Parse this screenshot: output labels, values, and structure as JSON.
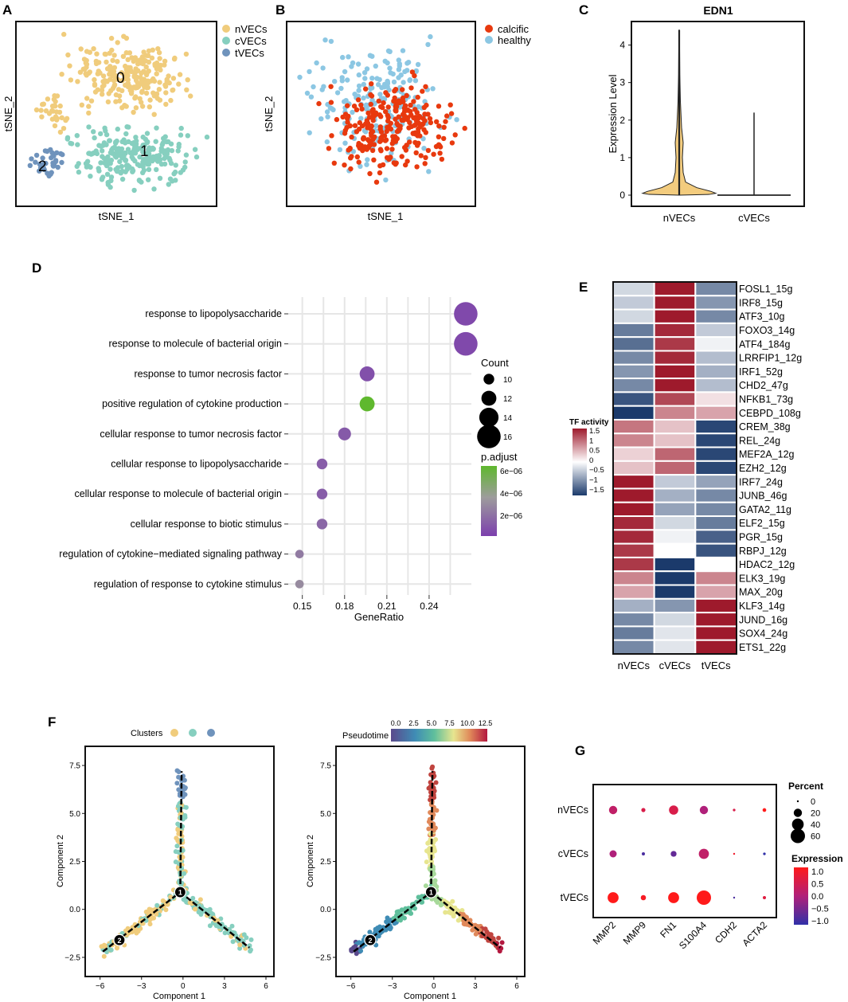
{
  "colors": {
    "nVECs": "#f0cc7c",
    "cVECs": "#86cfbf",
    "tVECs": "#6f93bc",
    "calcific": "#e8390e",
    "healthy": "#8cc7e3",
    "violin": "#f3cc7e",
    "frame": "#111111",
    "grid": "#e6e6e6"
  },
  "chart_data": [
    {
      "panel": "A",
      "type": "scatter",
      "xlabel": "tSNE_1",
      "ylabel": "tSNE_2",
      "legend": [
        "nVECs",
        "cVECs",
        "tVECs"
      ],
      "cluster_labels": [
        "0",
        "1",
        "2"
      ]
    },
    {
      "panel": "B",
      "type": "scatter",
      "xlabel": "tSNE_1",
      "ylabel": "tSNE_2",
      "legend": [
        "calcific",
        "healthy"
      ]
    },
    {
      "panel": "C",
      "type": "violin",
      "title": "EDN1",
      "ylabel": "Expression Level",
      "categories": [
        "nVECs",
        "cVECs"
      ],
      "ylim": [
        0,
        4.5
      ],
      "yticks": [
        "0",
        "1",
        "2",
        "3",
        "4"
      ],
      "max_values": [
        4.4,
        2.2
      ]
    },
    {
      "panel": "D",
      "type": "scatter",
      "xlabel": "GeneRatio",
      "xticks": [
        "0.15",
        "0.18",
        "0.21",
        "0.24"
      ],
      "xlim": [
        0.14,
        0.27
      ],
      "terms": [
        {
          "term": "response to lipopolysaccharide",
          "ratio": 0.266,
          "count": 16,
          "padj": 1.5e-06
        },
        {
          "term": "response to molecule of bacterial origin",
          "ratio": 0.266,
          "count": 16,
          "padj": 1.5e-06
        },
        {
          "term": "response to tumor necrosis factor",
          "ratio": 0.196,
          "count": 12,
          "padj": 1.7e-06
        },
        {
          "term": "positive regulation of cytokine production",
          "ratio": 0.196,
          "count": 12,
          "padj": 6.3e-06
        },
        {
          "term": "cellular response to tumor necrosis factor",
          "ratio": 0.18,
          "count": 11,
          "padj": 2e-06
        },
        {
          "term": "cellular response to lipopolysaccharide",
          "ratio": 0.164,
          "count": 10,
          "padj": 2.1e-06
        },
        {
          "term": "cellular response to molecule of bacterial origin",
          "ratio": 0.164,
          "count": 10,
          "padj": 2.1e-06
        },
        {
          "term": "cellular response to biotic stimulus",
          "ratio": 0.164,
          "count": 10,
          "padj": 2.4e-06
        },
        {
          "term": "regulation of cytokine−mediated signaling pathway",
          "ratio": 0.148,
          "count": 9,
          "padj": 3e-06
        },
        {
          "term": "regulation of response to cytokine stimulus",
          "ratio": 0.148,
          "count": 9,
          "padj": 3.5e-06
        }
      ],
      "size_legend_title": "Count",
      "size_legend": [
        "10",
        "12",
        "14",
        "16"
      ],
      "color_legend_title": "p.adjust",
      "color_legend": [
        "6e−06",
        "4e−06",
        "2e−06"
      ]
    },
    {
      "panel": "E",
      "type": "heatmap",
      "legend_title": "TF activity",
      "legend_ticks": [
        "1.5",
        "1",
        "0.5",
        "0",
        "−0.5",
        "−1",
        "−1.5"
      ],
      "columns": [
        "nVECs",
        "cVECs",
        "tVECs"
      ],
      "rows": [
        {
          "tf": "FOSL1_15g",
          "values": [
            -0.3,
            1.5,
            -0.9
          ]
        },
        {
          "tf": "IRF8_15g",
          "values": [
            -0.4,
            1.5,
            -0.8
          ]
        },
        {
          "tf": "ATF3_10g",
          "values": [
            -0.3,
            1.5,
            -0.9
          ]
        },
        {
          "tf": "FOXO3_14g",
          "values": [
            -1.0,
            1.4,
            -0.4
          ]
        },
        {
          "tf": "ATF4_184g",
          "values": [
            -1.1,
            1.3,
            -0.1
          ]
        },
        {
          "tf": "LRRFIP1_12g",
          "values": [
            -0.9,
            1.4,
            -0.5
          ]
        },
        {
          "tf": "IRF1_52g",
          "values": [
            -0.8,
            1.5,
            -0.6
          ]
        },
        {
          "tf": "CHD2_47g",
          "values": [
            -0.9,
            1.5,
            -0.5
          ]
        },
        {
          "tf": "NFKB1_73g",
          "values": [
            -1.3,
            1.2,
            0.2
          ]
        },
        {
          "tf": "CEBPD_108g",
          "values": [
            -1.5,
            0.8,
            0.6
          ]
        },
        {
          "tf": "CREM_38g",
          "values": [
            0.9,
            0.4,
            -1.4
          ]
        },
        {
          "tf": "REL_24g",
          "values": [
            0.8,
            0.4,
            -1.4
          ]
        },
        {
          "tf": "MEF2A_12g",
          "values": [
            0.3,
            1.0,
            -1.4
          ]
        },
        {
          "tf": "EZH2_12g",
          "values": [
            0.4,
            1.0,
            -1.4
          ]
        },
        {
          "tf": "IRF7_24g",
          "values": [
            1.5,
            -0.4,
            -0.7
          ]
        },
        {
          "tf": "JUNB_46g",
          "values": [
            1.5,
            -0.6,
            -0.9
          ]
        },
        {
          "tf": "GATA2_11g",
          "values": [
            1.5,
            -0.7,
            -0.9
          ]
        },
        {
          "tf": "ELF2_15g",
          "values": [
            1.4,
            -0.3,
            -1.0
          ]
        },
        {
          "tf": "PGR_15g",
          "values": [
            1.4,
            -0.1,
            -1.2
          ]
        },
        {
          "tf": "RBPJ_12g",
          "values": [
            1.3,
            0.0,
            -1.3
          ]
        },
        {
          "tf": "HDAC2_12g",
          "values": [
            1.3,
            -1.5,
            0.0
          ]
        },
        {
          "tf": "ELK3_19g",
          "values": [
            0.8,
            -1.6,
            0.8
          ]
        },
        {
          "tf": "MAX_20g",
          "values": [
            0.6,
            -1.6,
            0.6
          ]
        },
        {
          "tf": "KLF3_14g",
          "values": [
            -0.6,
            -0.8,
            1.5
          ]
        },
        {
          "tf": "JUND_16g",
          "values": [
            -0.9,
            -0.3,
            1.5
          ]
        },
        {
          "tf": "SOX4_24g",
          "values": [
            -1.0,
            -0.2,
            1.5
          ]
        },
        {
          "tf": "ETS1_22g",
          "values": [
            -0.9,
            -0.2,
            1.5
          ]
        }
      ]
    },
    {
      "panel": "F",
      "type": "scatter",
      "plots": [
        {
          "legend_title": "Clusters",
          "color_by": "cluster"
        },
        {
          "legend_title": "Pseudotime",
          "color_by": "pseudotime",
          "legend_ticks": [
            "0.0",
            "2.5",
            "5.0",
            "7.5",
            "10.0",
            "12.5"
          ]
        }
      ],
      "xlabel": "Component 1",
      "ylabel": "Component 2",
      "xticks": [
        "−6",
        "−3",
        "0",
        "3",
        "6"
      ],
      "yticks": [
        "7.5",
        "5.0",
        "2.5",
        "0.0",
        "−2.5"
      ],
      "xlim": [
        -6.5,
        6
      ],
      "ylim": [
        -3,
        8
      ],
      "branch_nodes": [
        "1",
        "2"
      ]
    },
    {
      "panel": "G",
      "type": "scatter",
      "genes": [
        "MMP2",
        "MMP9",
        "FN1",
        "S100A4",
        "CDH2",
        "ACTA2"
      ],
      "groups": [
        "nVECs",
        "cVECs",
        "tVECs"
      ],
      "percent": [
        [
          20,
          5,
          25,
          20,
          2,
          4
        ],
        [
          15,
          3,
          10,
          30,
          1,
          2
        ],
        [
          35,
          8,
          35,
          60,
          1,
          3
        ]
      ],
      "expression": [
        [
          0.2,
          0.5,
          0.5,
          0.0,
          0.5,
          1.0
        ],
        [
          0.0,
          -0.8,
          -0.6,
          0.2,
          0.8,
          -1.0
        ],
        [
          1.0,
          0.9,
          1.0,
          1.0,
          -0.8,
          0.6
        ]
      ],
      "size_legend_title": "Percent",
      "size_legend": [
        "0",
        "20",
        "40",
        "60"
      ],
      "color_legend_title": "Expression",
      "color_legend": [
        "1.0",
        "0.5",
        "0.0",
        "−0.5",
        "−1.0"
      ]
    }
  ],
  "panels": {
    "A": "A",
    "B": "B",
    "C": "C",
    "D": "D",
    "E": "E",
    "F": "F",
    "G": "G"
  }
}
